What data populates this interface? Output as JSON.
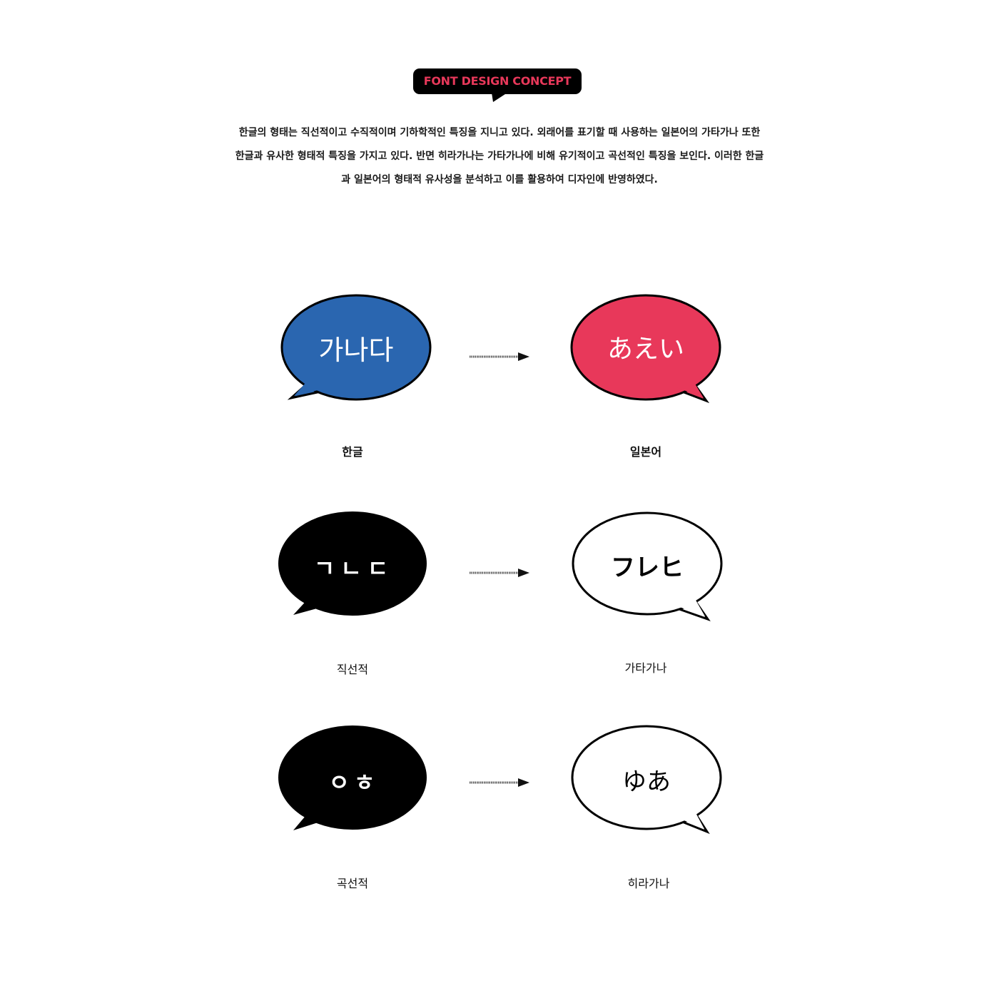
{
  "header": {
    "badge_label": "FONT DESIGN CONCEPT",
    "badge_color": "#e8385a",
    "intro_lines": [
      "한글의 형태는 직선적이고 수직적이며 기하학적인 특징을 지니고 있다. 외래어를 표기할 때 사용하는 일본어의 가타가나 또한",
      "한글과 유사한 형태적 특징을 가지고 있다. 반면 히라가나는 가타가나에 비해 유기적이고 곡선적인 특징을 보인다. 이러한 한글",
      "과 일본어의 형태적 유사성을 분석하고 이를 활용하여 디자인에 반영하였다."
    ]
  },
  "rows": [
    {
      "left": {
        "glyphs": "가나다",
        "caption": "한글",
        "fill": "#2a66b0"
      },
      "right": {
        "glyphs": "あえい",
        "caption": "일본어",
        "fill": "#e8385a"
      }
    },
    {
      "left": {
        "glyphs": "ㄱㄴㄷ",
        "caption": "직선적",
        "fill": "#000000"
      },
      "right": {
        "glyphs": "フレヒ",
        "caption": "가타가나",
        "fill": "#ffffff"
      }
    },
    {
      "left": {
        "glyphs": "ㅇㅎ",
        "caption": "곡선적",
        "fill": "#000000"
      },
      "right": {
        "glyphs": "ゆあ",
        "caption": "히라가나",
        "fill": "#ffffff"
      }
    }
  ]
}
